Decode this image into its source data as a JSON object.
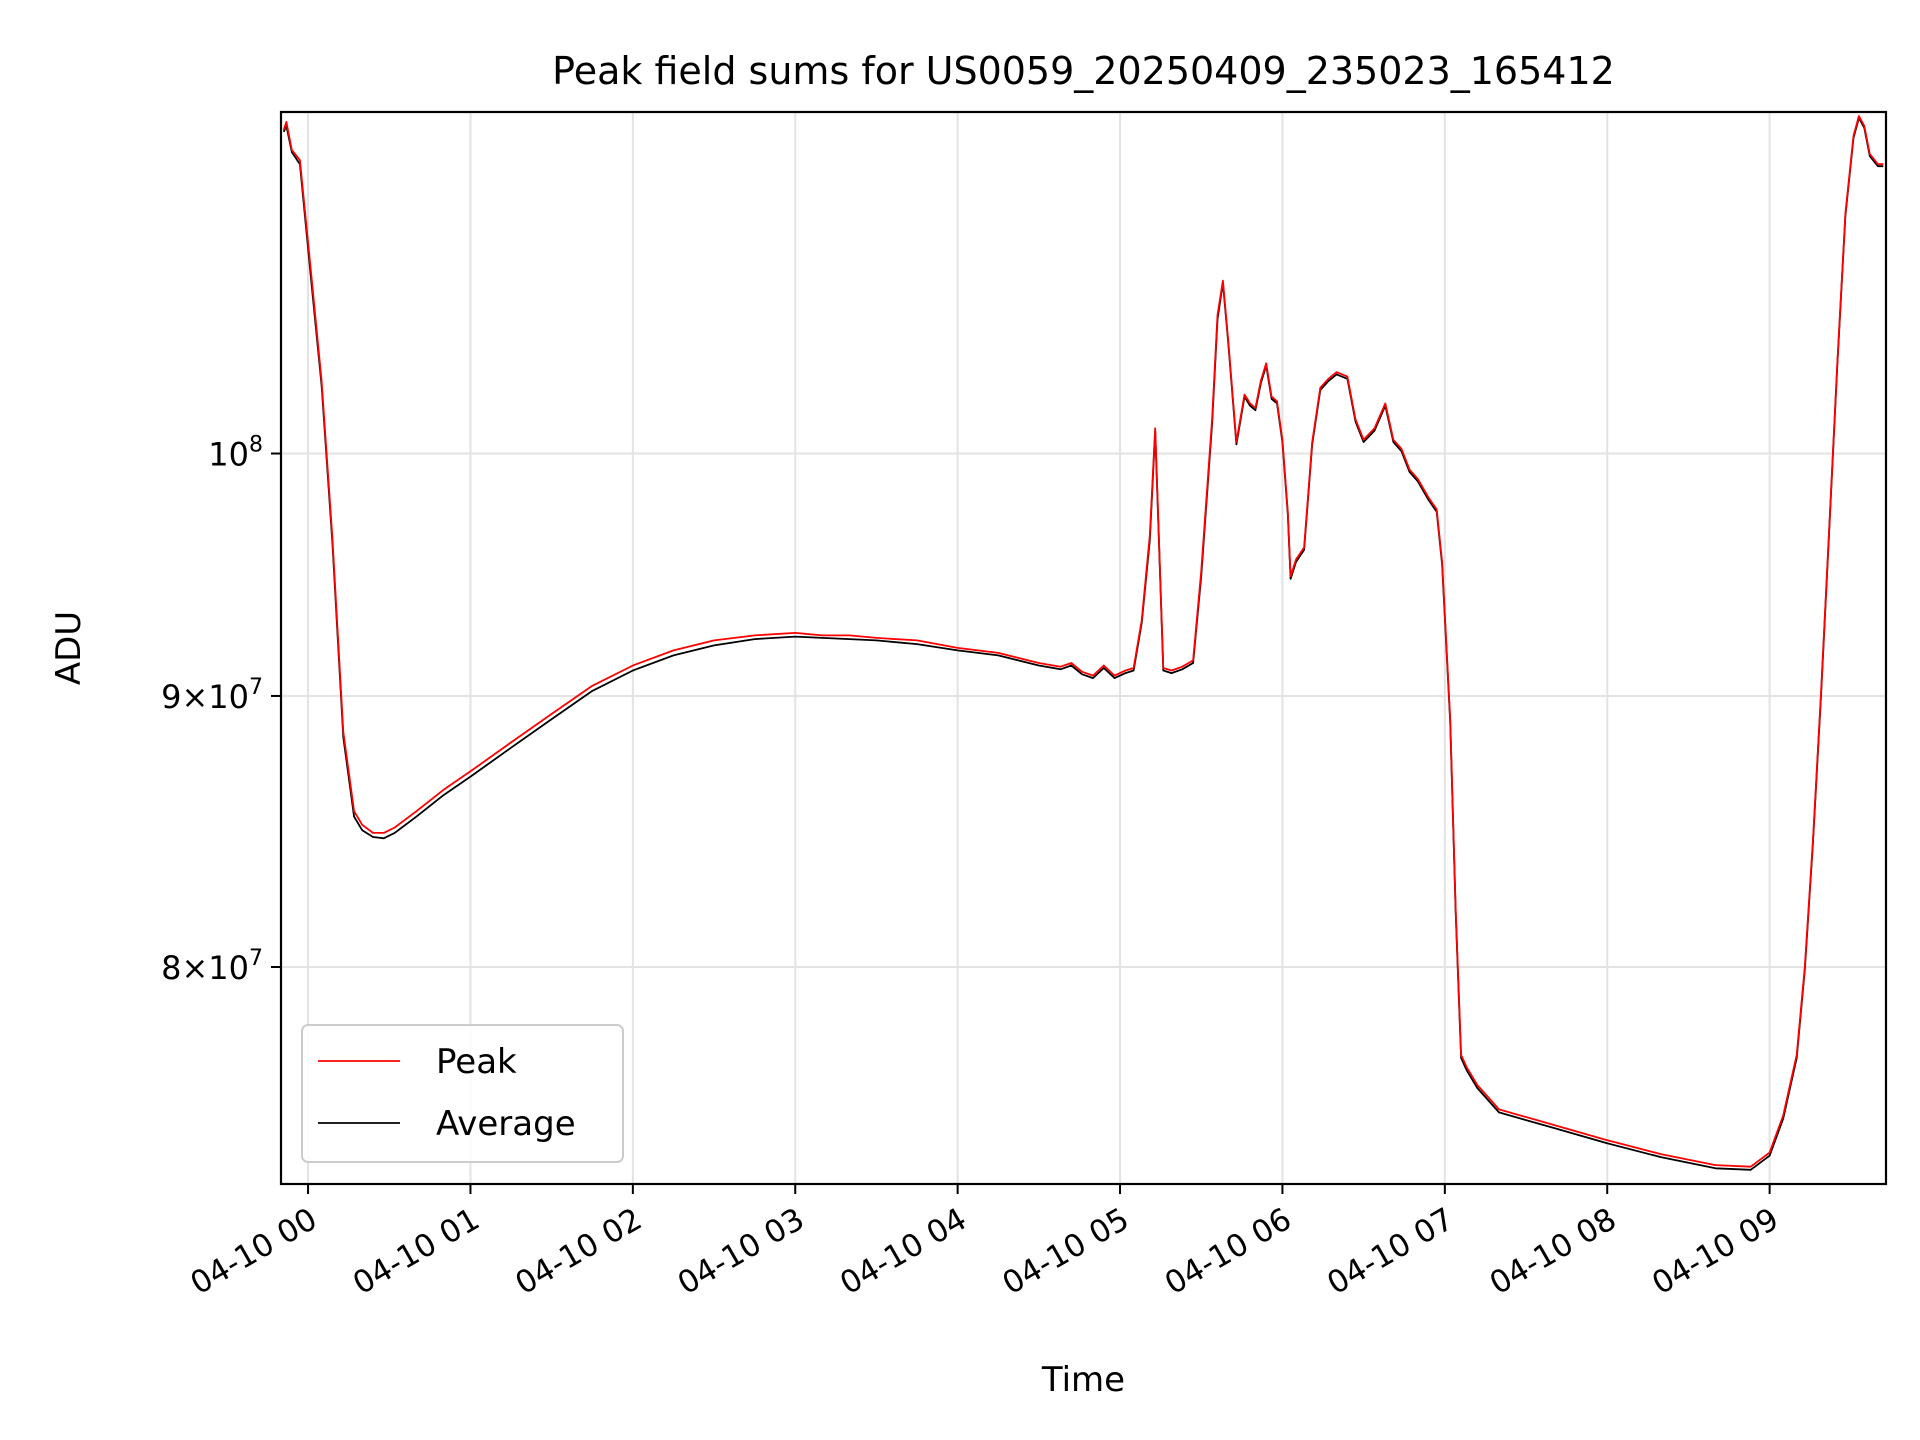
{
  "chart_data": {
    "type": "line",
    "title": "Peak field sums for US0059_20250409_235023_165412",
    "xlabel": "Time",
    "ylabel": "ADU",
    "yscale": "log",
    "grid": true,
    "legend_position": "lower-left",
    "x_ticks": [
      "04-10 00",
      "04-10 01",
      "04-10 02",
      "04-10 03",
      "04-10 04",
      "04-10 05",
      "04-10 06",
      "04-10 07",
      "04-10 08",
      "04-10 09"
    ],
    "y_ticks": [
      {
        "value": 80000000,
        "mantissa": "8",
        "base": "10",
        "exp": "7"
      },
      {
        "value": 90000000,
        "mantissa": "9",
        "base": "10",
        "exp": "7"
      },
      {
        "value": 100000000,
        "mantissa": "",
        "base": "10",
        "exp": "8"
      }
    ],
    "xlim": [
      "2025-04-09 23:50",
      "2025-04-10 09:43"
    ],
    "ylim": [
      72800000,
      116000000
    ],
    "colors": {
      "Peak": "#ff0000",
      "Average": "#000000"
    },
    "x": [
      "2025-04-09 23:51",
      "2025-04-09 23:52",
      "2025-04-09 23:54",
      "2025-04-09 23:57",
      "2025-04-10 00:01",
      "2025-04-10 00:05",
      "2025-04-10 00:09",
      "2025-04-10 00:13",
      "2025-04-10 00:17",
      "2025-04-10 00:20",
      "2025-04-10 00:24",
      "2025-04-10 00:28",
      "2025-04-10 00:30",
      "2025-04-10 00:32",
      "2025-04-10 00:40",
      "2025-04-10 00:50",
      "2025-04-10 01:00",
      "2025-04-10 01:15",
      "2025-04-10 01:30",
      "2025-04-10 01:45",
      "2025-04-10 02:00",
      "2025-04-10 02:15",
      "2025-04-10 02:30",
      "2025-04-10 02:45",
      "2025-04-10 03:00",
      "2025-04-10 03:10",
      "2025-04-10 03:20",
      "2025-04-10 03:30",
      "2025-04-10 03:45",
      "2025-04-10 04:00",
      "2025-04-10 04:15",
      "2025-04-10 04:30",
      "2025-04-10 04:38",
      "2025-04-10 04:42",
      "2025-04-10 04:46",
      "2025-04-10 04:50",
      "2025-04-10 04:54",
      "2025-04-10 04:58",
      "2025-04-10 05:02",
      "2025-04-10 05:05",
      "2025-04-10 05:08",
      "2025-04-10 05:11",
      "2025-04-10 05:13",
      "2025-04-10 05:16",
      "2025-04-10 05:19",
      "2025-04-10 05:23",
      "2025-04-10 05:27",
      "2025-04-10 05:30",
      "2025-04-10 05:34",
      "2025-04-10 05:36",
      "2025-04-10 05:38",
      "2025-04-10 05:40",
      "2025-04-10 05:43",
      "2025-04-10 05:46",
      "2025-04-10 05:48",
      "2025-04-10 05:50",
      "2025-04-10 05:52",
      "2025-04-10 05:54",
      "2025-04-10 05:56",
      "2025-04-10 05:58",
      "2025-04-10 06:00",
      "2025-04-10 06:02",
      "2025-04-10 06:03",
      "2025-04-10 06:05",
      "2025-04-10 06:08",
      "2025-04-10 06:11",
      "2025-04-10 06:14",
      "2025-04-10 06:17",
      "2025-04-10 06:20",
      "2025-04-10 06:24",
      "2025-04-10 06:27",
      "2025-04-10 06:30",
      "2025-04-10 06:34",
      "2025-04-10 06:38",
      "2025-04-10 06:41",
      "2025-04-10 06:44",
      "2025-04-10 06:47",
      "2025-04-10 06:50",
      "2025-04-10 06:54",
      "2025-04-10 06:57",
      "2025-04-10 06:59",
      "2025-04-10 07:02",
      "2025-04-10 07:04",
      "2025-04-10 07:06",
      "2025-04-10 07:08",
      "2025-04-10 07:12",
      "2025-04-10 07:20",
      "2025-04-10 07:40",
      "2025-04-10 08:00",
      "2025-04-10 08:20",
      "2025-04-10 08:40",
      "2025-04-10 08:53",
      "2025-04-10 09:00",
      "2025-04-10 09:05",
      "2025-04-10 09:10",
      "2025-04-10 09:13",
      "2025-04-10 09:16",
      "2025-04-10 09:19",
      "2025-04-10 09:22",
      "2025-04-10 09:25",
      "2025-04-10 09:28",
      "2025-04-10 09:31",
      "2025-04-10 09:33",
      "2025-04-10 09:35",
      "2025-04-10 09:37",
      "2025-04-10 09:40",
      "2025-04-10 09:42"
    ],
    "series": [
      {
        "name": "Peak",
        "values": [
          115100000,
          115500000,
          114100000,
          113600000,
          108300000,
          103200000,
          96400000,
          88600000,
          85600000,
          85100000,
          84800000,
          84800000,
          84900000,
          85000000,
          85600000,
          86400000,
          87100000,
          88200000,
          89300000,
          90400000,
          91200000,
          91800000,
          92200000,
          92400000,
          92500000,
          92400000,
          92400000,
          92300000,
          92200000,
          91900000,
          91700000,
          91300000,
          91150000,
          91300000,
          90950000,
          90800000,
          91200000,
          90800000,
          91000000,
          91100000,
          93000000,
          96500000,
          101100000,
          91100000,
          91000000,
          91150000,
          91400000,
          95000000,
          101500000,
          106200000,
          107800000,
          105000000,
          100500000,
          102600000,
          102200000,
          102000000,
          103200000,
          104000000,
          102500000,
          102300000,
          100600000,
          97500000,
          94800000,
          95500000,
          96000000,
          100500000,
          102900000,
          103300000,
          103600000,
          103400000,
          101500000,
          100600000,
          101100000,
          102200000,
          100600000,
          100200000,
          99300000,
          98900000,
          98100000,
          97600000,
          95400000,
          89100000,
          82000000,
          77000000,
          76600000,
          76000000,
          75200000,
          74700000,
          74200000,
          73750000,
          73400000,
          73350000,
          73800000,
          75000000,
          77000000,
          80000000,
          84500000,
          90100000,
          96800000,
          104000000,
          111000000,
          114800000,
          115800000,
          115300000,
          113900000,
          113400000,
          113400000
        ]
      },
      {
        "name": "Average",
        "values": [
          115000000,
          115300000,
          114000000,
          113400000,
          108000000,
          103000000,
          96200000,
          88400000,
          85400000,
          84900000,
          84650000,
          84600000,
          84700000,
          84800000,
          85400000,
          86200000,
          86900000,
          88000000,
          89100000,
          90200000,
          91000000,
          91600000,
          92000000,
          92250000,
          92350000,
          92300000,
          92250000,
          92200000,
          92050000,
          91800000,
          91600000,
          91200000,
          91050000,
          91200000,
          90850000,
          90700000,
          91100000,
          90700000,
          90900000,
          91000000,
          92900000,
          96300000,
          101000000,
          91000000,
          90900000,
          91050000,
          91300000,
          94800000,
          101300000,
          106000000,
          107700000,
          104900000,
          100400000,
          102500000,
          102100000,
          101900000,
          103100000,
          103900000,
          102400000,
          102200000,
          100500000,
          97400000,
          94700000,
          95400000,
          95900000,
          100400000,
          102800000,
          103200000,
          103500000,
          103300000,
          101400000,
          100500000,
          101000000,
          102100000,
          100500000,
          100100000,
          99200000,
          98800000,
          98000000,
          97500000,
          95300000,
          89000000,
          81900000,
          76900000,
          76500000,
          75900000,
          75100000,
          74600000,
          74100000,
          73650000,
          73300000,
          73250000,
          73700000,
          74900000,
          76900000,
          79900000,
          84400000,
          90000000,
          96700000,
          103900000,
          110900000,
          114700000,
          115700000,
          115200000,
          113800000,
          113300000,
          113300000
        ]
      }
    ]
  }
}
